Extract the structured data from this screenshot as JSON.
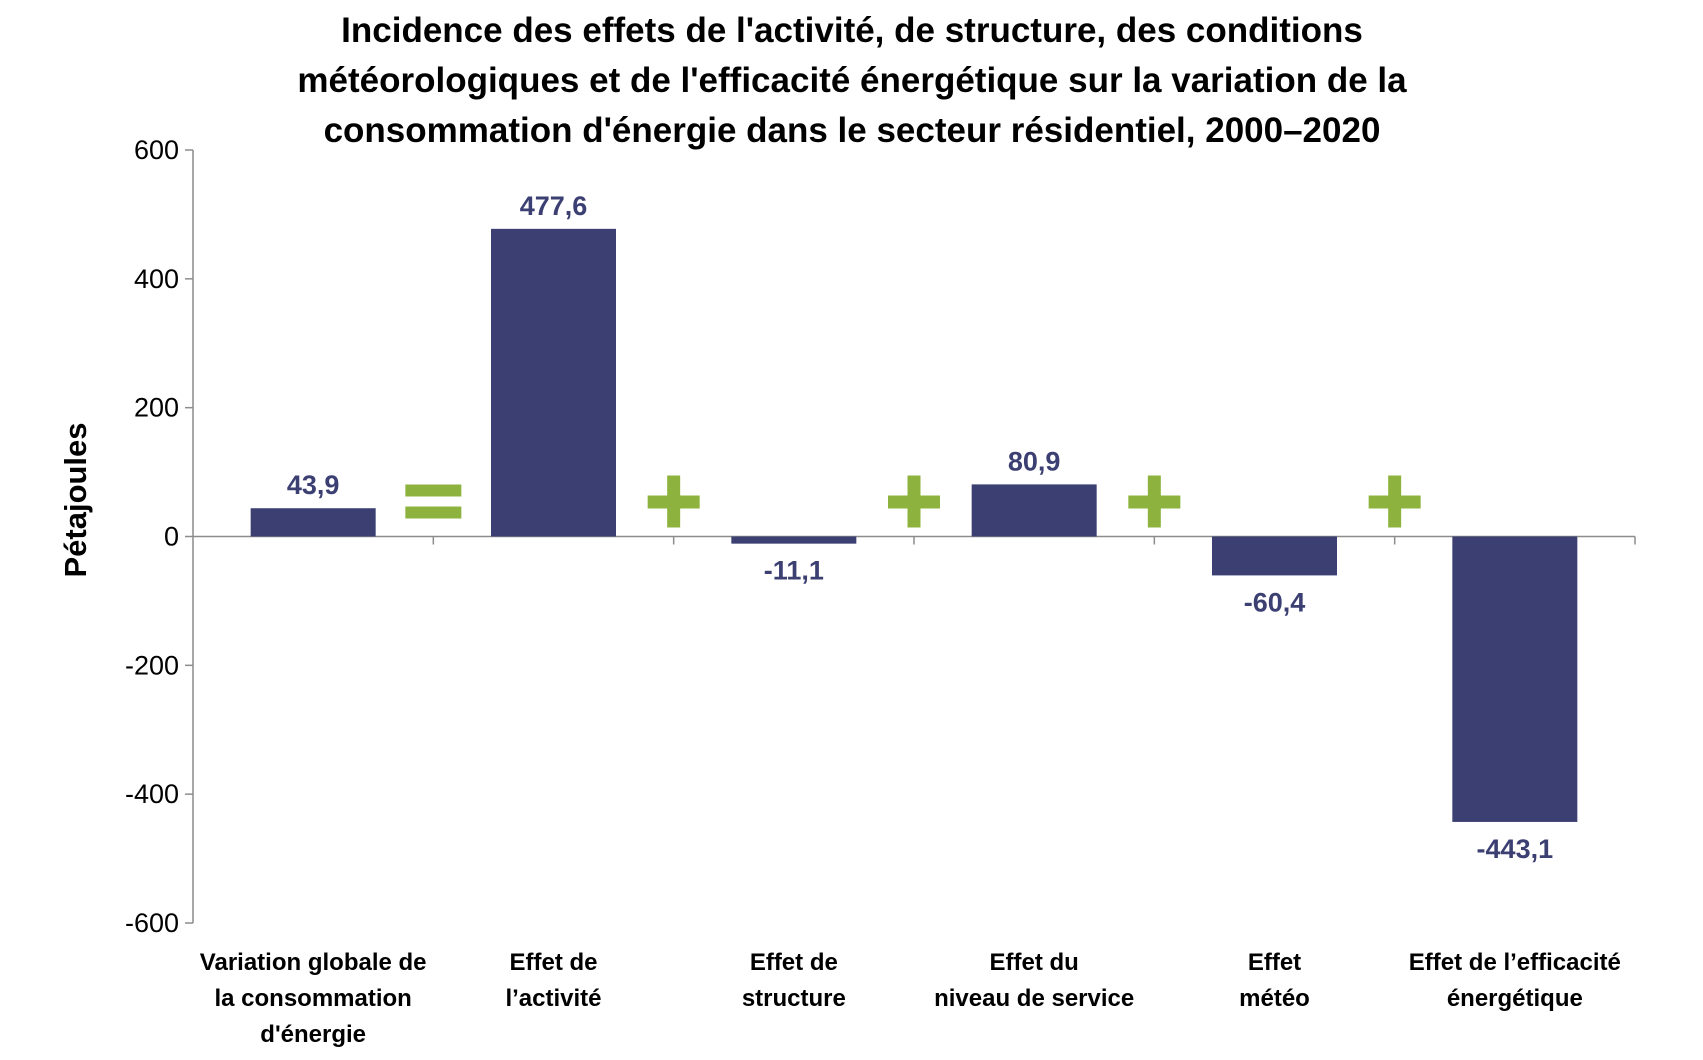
{
  "chart_data": {
    "type": "bar",
    "title": [
      "Incidence des effets de l'activité, de structure, des conditions",
      "météorologiques et de l'efficacité énergétique sur la variation de la",
      "consommation d'énergie dans le secteur résidentiel, 2000–2020"
    ],
    "ylabel": "Pétajoules",
    "xlabel": "",
    "ylim": [
      -600,
      600
    ],
    "yticks": [
      "600",
      "400",
      "200",
      "0",
      "-200",
      "-400",
      "-600"
    ],
    "ytick_values": [
      600,
      400,
      200,
      0,
      -200,
      -400,
      -600
    ],
    "categories": [
      [
        "Variation globale de",
        "la consommation",
        "d'énergie"
      ],
      [
        "Effet de",
        "l’activité"
      ],
      [
        "Effet de",
        "structure"
      ],
      [
        "Effet du",
        "niveau de service"
      ],
      [
        "Effet",
        "météo"
      ],
      [
        "Effet de l’efficacité",
        "énergétique"
      ]
    ],
    "values": [
      43.9,
      477.6,
      -11.1,
      80.9,
      -60.4,
      -443.1
    ],
    "value_labels": [
      "43,9",
      "477,6",
      "-11,1",
      "80,9",
      "-60,4",
      "-443,1"
    ],
    "operators": [
      "=",
      "+",
      "+",
      "+",
      "+"
    ],
    "grid": false,
    "legend": "none",
    "colors": {
      "bar": "#3b3f72",
      "label": "#3b3f72",
      "operator": "#8db33e",
      "axis": "#8c8c8c"
    }
  }
}
